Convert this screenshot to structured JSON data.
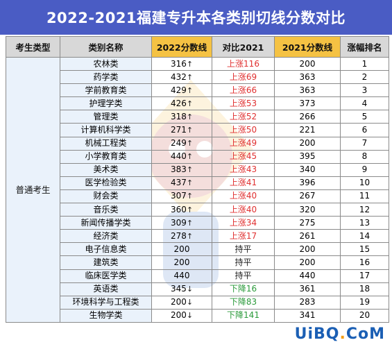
{
  "title": "2022-2021福建专升本各类别切线分数对比",
  "headers": {
    "type": "考生类型",
    "name": "类别名称",
    "score2022": "2022分数线",
    "compare": "对比2021",
    "score2021": "2021分数线",
    "rank": "涨幅排名"
  },
  "group_label": "普通考生",
  "rows": [
    {
      "name": "农林类",
      "s22": "316",
      "arrow": "↑",
      "cmp": "上涨116",
      "trend": "up",
      "s21": "200",
      "rank": "1"
    },
    {
      "name": "药学类",
      "s22": "432",
      "arrow": "↑",
      "cmp": "上涨69",
      "trend": "up",
      "s21": "363",
      "rank": "2"
    },
    {
      "name": "学前教育类",
      "s22": "429",
      "arrow": "↑",
      "cmp": "上涨66",
      "trend": "up",
      "s21": "363",
      "rank": "3"
    },
    {
      "name": "护理学类",
      "s22": "426",
      "arrow": "↑",
      "cmp": "上涨53",
      "trend": "up",
      "s21": "373",
      "rank": "4"
    },
    {
      "name": "管理类",
      "s22": "318",
      "arrow": "↑",
      "cmp": "上涨52",
      "trend": "up",
      "s21": "266",
      "rank": "5"
    },
    {
      "name": "计算机科学类",
      "s22": "271",
      "arrow": "↑",
      "cmp": "上涨50",
      "trend": "up",
      "s21": "221",
      "rank": "6"
    },
    {
      "name": "机械工程类",
      "s22": "249",
      "arrow": "↑",
      "cmp": "上涨49",
      "trend": "up",
      "s21": "200",
      "rank": "7"
    },
    {
      "name": "小学教育类",
      "s22": "440",
      "arrow": "↑",
      "cmp": "上涨45",
      "trend": "up",
      "s21": "395",
      "rank": "8"
    },
    {
      "name": "美术类",
      "s22": "383",
      "arrow": "↑",
      "cmp": "上涨43",
      "trend": "up",
      "s21": "340",
      "rank": "9"
    },
    {
      "name": "医学检验类",
      "s22": "437",
      "arrow": "↑",
      "cmp": "上涨41",
      "trend": "up",
      "s21": "396",
      "rank": "10"
    },
    {
      "name": "财会类",
      "s22": "307",
      "arrow": "↑",
      "cmp": "上涨40",
      "trend": "up",
      "s21": "267",
      "rank": "11"
    },
    {
      "name": "音乐类",
      "s22": "360",
      "arrow": "↑",
      "cmp": "上涨40",
      "trend": "up",
      "s21": "320",
      "rank": "12"
    },
    {
      "name": "新闻传播学类",
      "s22": "309",
      "arrow": "↑",
      "cmp": "上涨34",
      "trend": "up",
      "s21": "275",
      "rank": "13"
    },
    {
      "name": "经济类",
      "s22": "278",
      "arrow": "↑",
      "cmp": "上涨17",
      "trend": "up",
      "s21": "261",
      "rank": "14"
    },
    {
      "name": "电子信息类",
      "s22": "200",
      "arrow": "",
      "cmp": "持平",
      "trend": "flat",
      "s21": "200",
      "rank": "15"
    },
    {
      "name": "建筑类",
      "s22": "200",
      "arrow": "",
      "cmp": "持平",
      "trend": "flat",
      "s21": "200",
      "rank": "16"
    },
    {
      "name": "临床医学类",
      "s22": "440",
      "arrow": "",
      "cmp": "持平",
      "trend": "flat",
      "s21": "440",
      "rank": "17"
    },
    {
      "name": "英语类",
      "s22": "345",
      "arrow": "↓",
      "cmp": "下降16",
      "trend": "down",
      "s21": "361",
      "rank": "18"
    },
    {
      "name": "环境科学与工程类",
      "s22": "200",
      "arrow": "↓",
      "cmp": "下降83",
      "trend": "down",
      "s21": "283",
      "rank": "19"
    },
    {
      "name": "生物学类",
      "s22": "200",
      "arrow": "↓",
      "cmp": "下降141",
      "trend": "down",
      "s21": "341",
      "rank": "20"
    }
  ],
  "brand": {
    "part1": "UiBQ",
    "dot": ".",
    "part2": "CoM"
  },
  "colors": {
    "title_bg": "#4a5cc4",
    "header_gold": "#f5c243",
    "header_gray": "#d8d8d8",
    "up": "#e03030",
    "down": "#2a9a3a"
  }
}
